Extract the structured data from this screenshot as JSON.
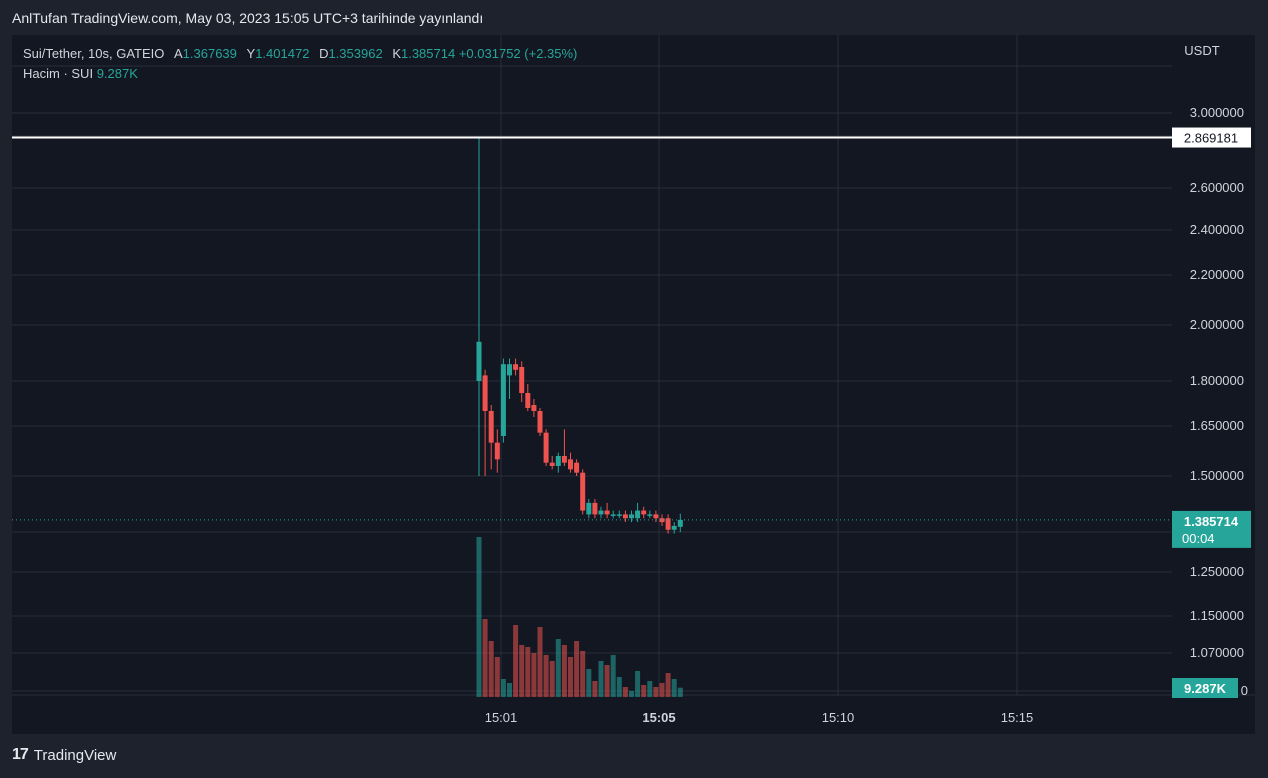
{
  "header": {
    "published": "AnlTufan TradingView.com, May 03, 2023 15:05 UTC+3 tarihinde yayınlandı"
  },
  "legend": {
    "symbol": "Sui/Tether, 10s, GATEIO",
    "open_label": "A",
    "open_value": "1.367639",
    "high_label": "Y",
    "high_value": "1.401472",
    "low_label": "D",
    "low_value": "1.353962",
    "close_label": "K",
    "close_value": "1.385714",
    "change": "+0.031752 (+2.35%)",
    "volume_label": "Hacim · SUI",
    "volume_value": "9.287K"
  },
  "footer": {
    "logo_mark": "17",
    "logo_text": "TradingView"
  },
  "colors": {
    "up": "#26a69a",
    "down": "#ef5350",
    "background": "#131722",
    "grid": "#2a2e39",
    "text": "#d1d4dc"
  },
  "chart_data": {
    "type": "candlestick",
    "currency": "USDT",
    "y_ticks": [
      "3.000000",
      "2.600000",
      "2.400000",
      "2.200000",
      "2.000000",
      "1.800000",
      "1.650000",
      "1.500000",
      "1.250000",
      "1.150000",
      "1.070000"
    ],
    "y_tick_values": [
      3.0,
      2.6,
      2.4,
      2.2,
      2.0,
      1.8,
      1.65,
      1.5,
      1.25,
      1.15,
      1.07
    ],
    "x_ticks": [
      "15:01",
      "15:05",
      "15:10",
      "15:15"
    ],
    "horizontal_line": {
      "value": 2.869181,
      "label": "2.869181"
    },
    "last_price": {
      "value": 1.385714,
      "label": "1.385714",
      "countdown": "00:04"
    },
    "volume_last_label": "9.287K",
    "volume_axis_partial_label": "0",
    "candles": [
      {
        "o": 1.8,
        "h": 2.869,
        "l": 1.5,
        "c": 1.94
      },
      {
        "o": 1.82,
        "h": 1.84,
        "l": 1.5,
        "c": 1.7
      },
      {
        "o": 1.7,
        "h": 1.72,
        "l": 1.52,
        "c": 1.6
      },
      {
        "o": 1.6,
        "h": 1.64,
        "l": 1.51,
        "c": 1.55
      },
      {
        "o": 1.62,
        "h": 1.88,
        "l": 1.6,
        "c": 1.86
      },
      {
        "o": 1.82,
        "h": 1.88,
        "l": 1.74,
        "c": 1.86
      },
      {
        "o": 1.86,
        "h": 1.88,
        "l": 1.82,
        "c": 1.84
      },
      {
        "o": 1.85,
        "h": 1.87,
        "l": 1.73,
        "c": 1.76
      },
      {
        "o": 1.76,
        "h": 1.79,
        "l": 1.7,
        "c": 1.71
      },
      {
        "o": 1.72,
        "h": 1.74,
        "l": 1.68,
        "c": 1.7
      },
      {
        "o": 1.7,
        "h": 1.71,
        "l": 1.62,
        "c": 1.63
      },
      {
        "o": 1.63,
        "h": 1.64,
        "l": 1.53,
        "c": 1.54
      },
      {
        "o": 1.54,
        "h": 1.56,
        "l": 1.52,
        "c": 1.53
      },
      {
        "o": 1.53,
        "h": 1.57,
        "l": 1.51,
        "c": 1.56
      },
      {
        "o": 1.56,
        "h": 1.64,
        "l": 1.53,
        "c": 1.54
      },
      {
        "o": 1.55,
        "h": 1.57,
        "l": 1.51,
        "c": 1.52
      },
      {
        "o": 1.54,
        "h": 1.55,
        "l": 1.5,
        "c": 1.51
      },
      {
        "o": 1.51,
        "h": 1.52,
        "l": 1.4,
        "c": 1.41
      },
      {
        "o": 1.4,
        "h": 1.44,
        "l": 1.39,
        "c": 1.43
      },
      {
        "o": 1.43,
        "h": 1.44,
        "l": 1.39,
        "c": 1.4
      },
      {
        "o": 1.4,
        "h": 1.42,
        "l": 1.39,
        "c": 1.41
      },
      {
        "o": 1.41,
        "h": 1.43,
        "l": 1.39,
        "c": 1.4
      },
      {
        "o": 1.4,
        "h": 1.41,
        "l": 1.39,
        "c": 1.4
      },
      {
        "o": 1.4,
        "h": 1.41,
        "l": 1.39,
        "c": 1.4
      },
      {
        "o": 1.4,
        "h": 1.41,
        "l": 1.38,
        "c": 1.39
      },
      {
        "o": 1.39,
        "h": 1.41,
        "l": 1.38,
        "c": 1.4
      },
      {
        "o": 1.39,
        "h": 1.43,
        "l": 1.38,
        "c": 1.41
      },
      {
        "o": 1.41,
        "h": 1.42,
        "l": 1.39,
        "c": 1.4
      },
      {
        "o": 1.4,
        "h": 1.41,
        "l": 1.39,
        "c": 1.4
      },
      {
        "o": 1.4,
        "h": 1.41,
        "l": 1.38,
        "c": 1.39
      },
      {
        "o": 1.39,
        "h": 1.4,
        "l": 1.37,
        "c": 1.38
      },
      {
        "o": 1.39,
        "h": 1.4,
        "l": 1.35,
        "c": 1.36
      },
      {
        "o": 1.36,
        "h": 1.38,
        "l": 1.35,
        "c": 1.37
      },
      {
        "o": 1.367639,
        "h": 1.401472,
        "l": 1.353962,
        "c": 1.385714
      }
    ],
    "volumes": [
      160,
      78,
      56,
      40,
      18,
      14,
      72,
      52,
      50,
      44,
      70,
      42,
      36,
      58,
      52,
      40,
      56,
      46,
      28,
      16,
      36,
      32,
      42,
      20,
      10,
      6,
      26,
      12,
      16,
      10,
      14,
      24,
      18,
      9.287
    ]
  }
}
